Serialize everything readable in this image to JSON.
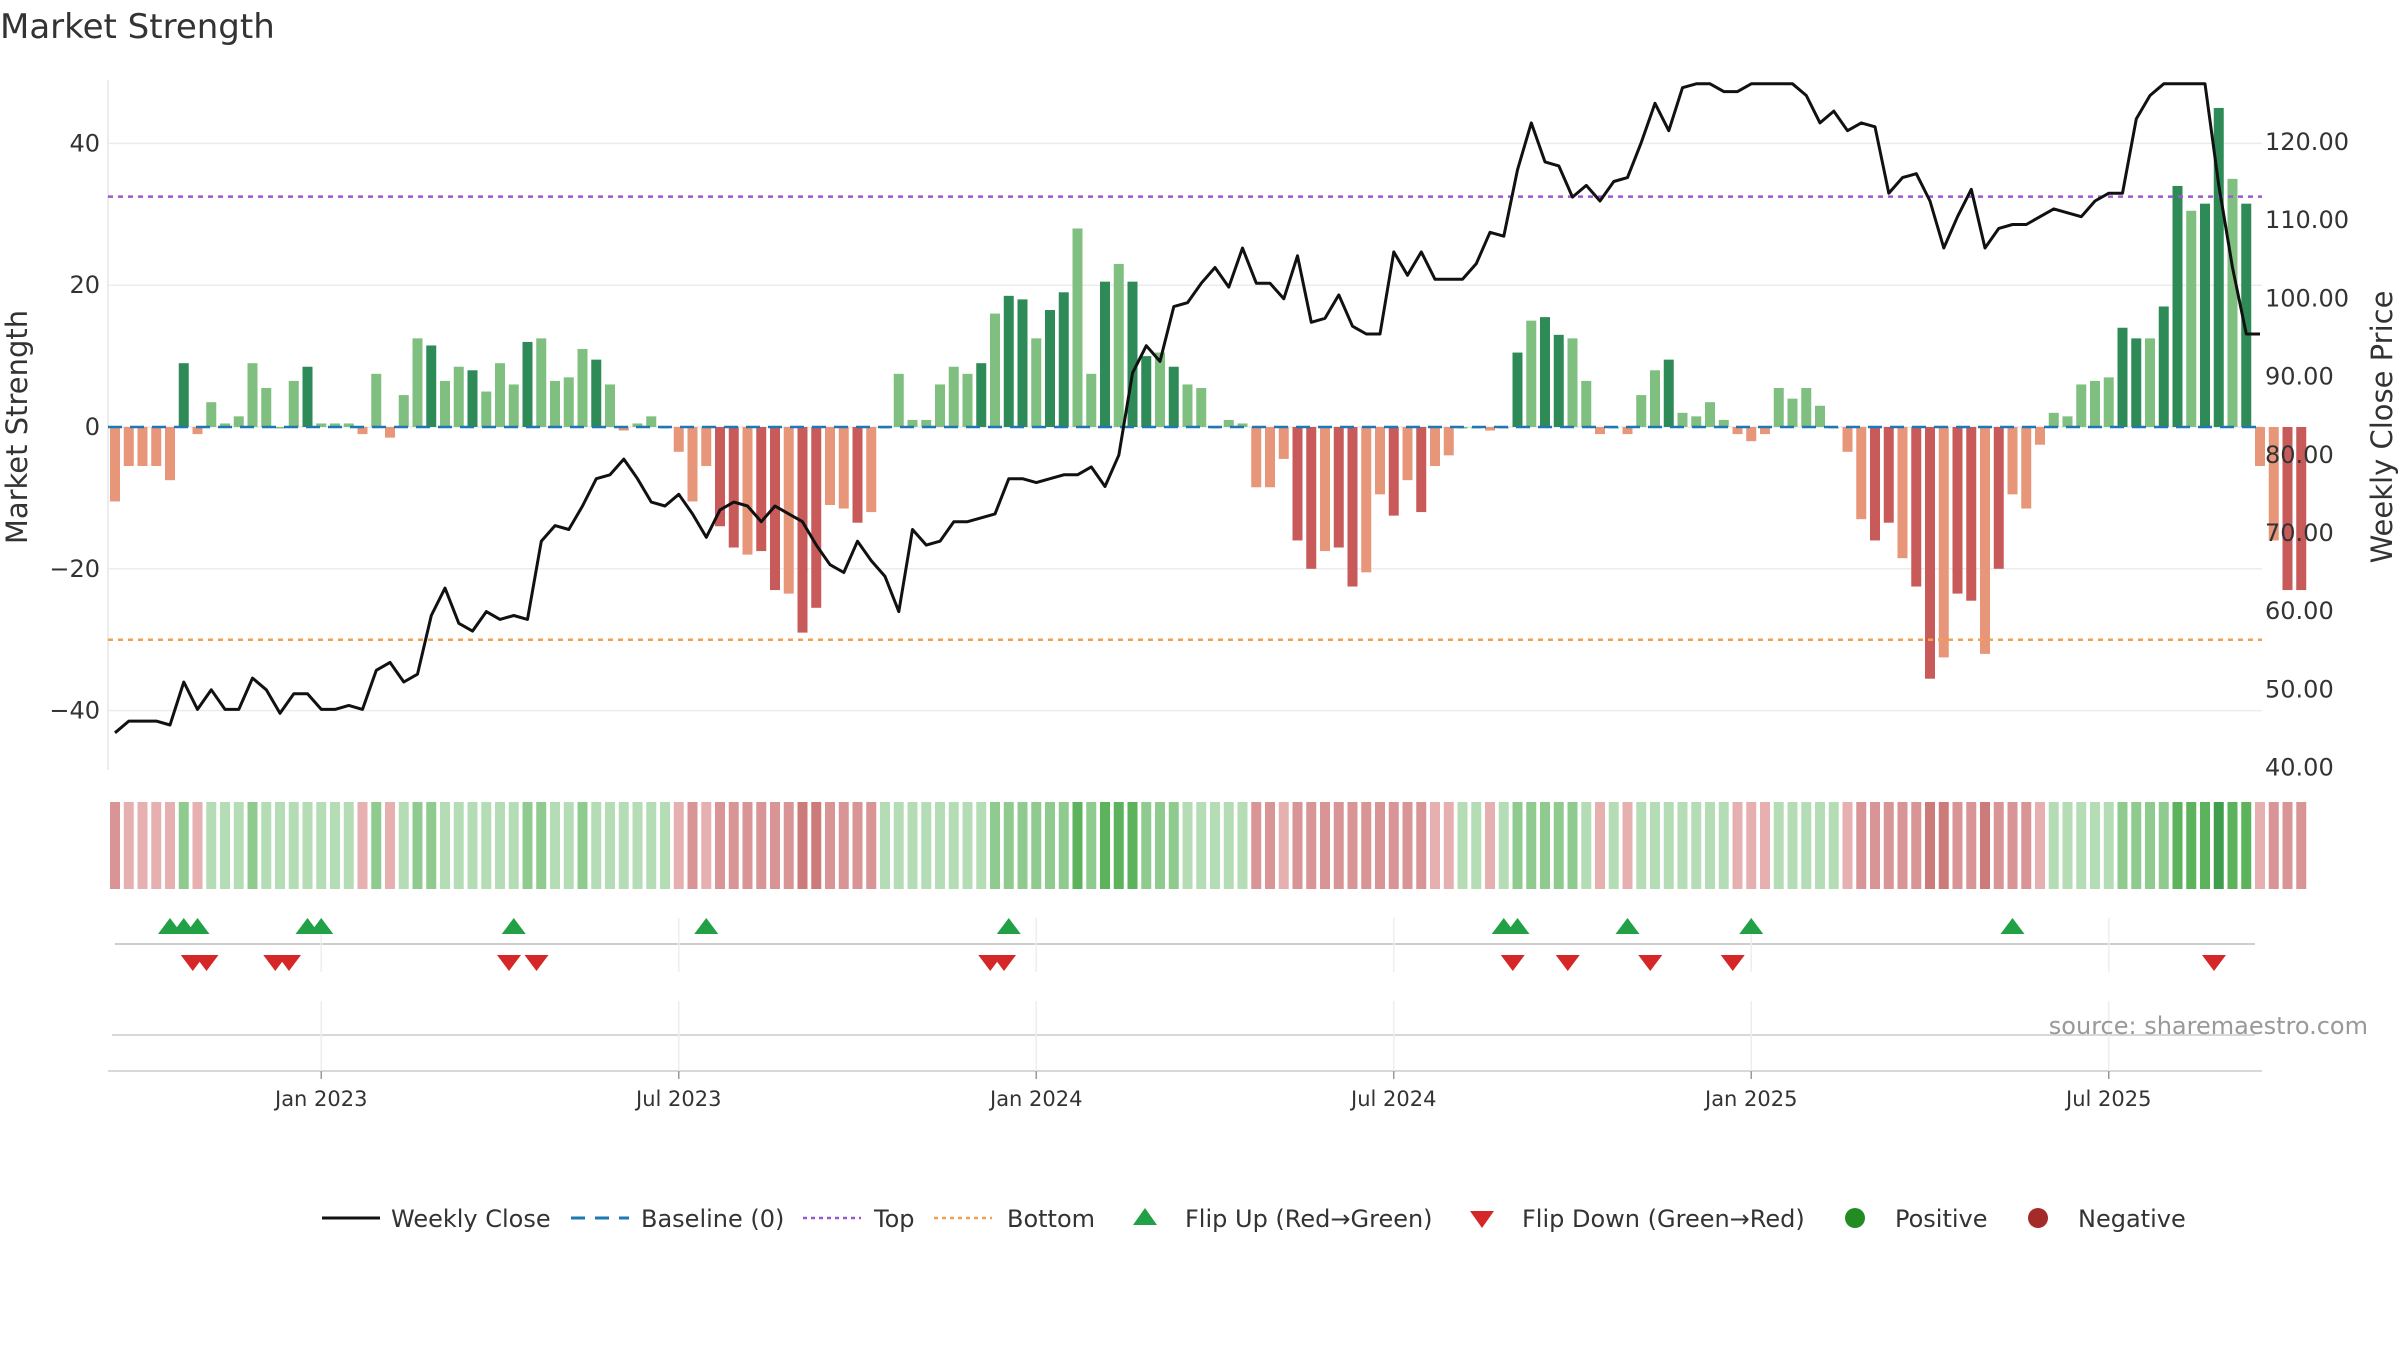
{
  "title": "Market Strength",
  "source_note": "source: sharemaestro.com",
  "colors": {
    "strong_green": "#2e8b57",
    "light_green": "#7fbf7f",
    "strong_red": "#c85a5a",
    "light_red": "#e8967a",
    "top_line": "#9b59d0",
    "bottom_line": "#f0a050",
    "baseline": "#1f77b4",
    "close_line": "#111111",
    "flip_up": "#22a046",
    "flip_down": "#d62728"
  },
  "chart_data": {
    "type": "bar",
    "title": "Market Strength",
    "left_axis": {
      "label": "Market Strength",
      "ticks": [
        "40",
        "20",
        "0",
        "−20",
        "−40"
      ],
      "range": [
        -48,
        48
      ]
    },
    "right_axis": {
      "label": "Weekly Close Price",
      "ticks": [
        "120.00",
        "110.00",
        "100.00",
        "90.00",
        "80.00",
        "70.00",
        "60.00",
        "50.00",
        "40.00"
      ],
      "range": [
        40,
        127
      ]
    },
    "x_ticks": [
      "Jan 2023",
      "Jul 2023",
      "Jan 2024",
      "Jul 2024",
      "Jan 2025",
      "Jul 2025"
    ],
    "x_tick_weeks": [
      15,
      41,
      67,
      93,
      119,
      145
    ],
    "top_level": 32.5,
    "bottom_level": -30,
    "baseline": 0,
    "strength": [
      -10.5,
      -5.5,
      -5.5,
      -5.5,
      -7.5,
      9,
      -1,
      3.5,
      0.5,
      1.5,
      9,
      5.5,
      0,
      6.5,
      8.5,
      0.5,
      0.5,
      0.5,
      -1,
      7.5,
      -1.5,
      4.5,
      12.5,
      11.5,
      6.5,
      8.5,
      8,
      5,
      9,
      6,
      12,
      12.5,
      6.5,
      7,
      11,
      9.5,
      6,
      -0.5,
      0.5,
      1.5,
      0,
      -3.5,
      -10.5,
      -5.5,
      -14,
      -17,
      -18,
      -17.5,
      -23,
      -23.5,
      -29,
      -25.5,
      -11,
      -11.5,
      -13.5,
      -12,
      0,
      7.5,
      1,
      1,
      6,
      8.5,
      7.5,
      9,
      16,
      18.5,
      18,
      12.5,
      16.5,
      19,
      28,
      7.5,
      20.5,
      23,
      20.5,
      10,
      10.5,
      8.5,
      6,
      5.5,
      0,
      1,
      0.5,
      -8.5,
      -8.5,
      -4.5,
      -16,
      -20,
      -17.5,
      -17,
      -22.5,
      -20.5,
      -9.5,
      -12.5,
      -7.5,
      -12,
      -5.5,
      -4,
      0,
      0,
      -0.5,
      0,
      10.5,
      15,
      15.5,
      13,
      12.5,
      6.5,
      -1,
      0,
      -1,
      4.5,
      8,
      9.5,
      2,
      1.5,
      3.5,
      1,
      -1,
      -2,
      -1,
      5.5,
      4,
      5.5,
      3,
      0,
      -3.5,
      -13,
      -16,
      -13.5,
      -18.5,
      -22.5,
      -35.5,
      -32.5,
      -23.5,
      -24.5,
      -32,
      -20,
      -9.5,
      -11.5,
      -2.5,
      2,
      1.5,
      6,
      6.5,
      7,
      14,
      12.5,
      12.5,
      17,
      34,
      30.5,
      31.5,
      45,
      35,
      31.5,
      -5.5,
      -16,
      -23,
      -23
    ],
    "weekly_close": [
      44.5,
      46,
      46,
      46,
      45.5,
      51,
      47.5,
      50,
      47.5,
      47.5,
      51.5,
      50,
      47,
      49.5,
      49.5,
      47.5,
      47.5,
      48,
      47.5,
      52.5,
      53.5,
      51,
      52,
      59.5,
      63,
      58.5,
      57.5,
      60,
      59,
      59.5,
      59,
      69,
      71,
      70.5,
      73.5,
      77,
      77.5,
      79.5,
      77,
      74,
      73.5,
      75,
      72.5,
      69.5,
      73,
      74,
      73.5,
      71.5,
      73.5,
      72.5,
      71.5,
      68.5,
      66,
      65,
      69,
      66.5,
      64.5,
      60,
      70.5,
      68.5,
      69,
      71.5,
      71.5,
      72,
      72.5,
      77,
      77,
      76.5,
      77,
      77.5,
      77.5,
      78.5,
      76,
      80,
      90.5,
      94,
      92,
      99,
      99.5,
      102,
      104,
      101.5,
      106.5,
      102,
      102,
      100,
      105.5,
      97,
      97.5,
      100.5,
      96.5,
      95.5,
      95.5,
      106,
      103,
      106,
      102.5,
      102.5,
      102.5,
      104.5,
      108.5,
      108,
      116.5,
      122.5,
      117.5,
      117,
      113,
      114.5,
      112.5,
      115,
      115.5,
      120,
      125,
      121.5,
      127,
      129.5,
      131.5,
      126.5,
      126.5,
      130,
      130,
      129.5,
      130,
      126,
      122.5,
      124,
      121.5,
      122.5,
      122,
      113.5,
      115.5,
      116,
      112.5,
      106.5,
      110.5,
      114,
      106.5,
      109,
      109.5,
      109.5,
      110.5,
      111.5,
      111,
      110.5,
      112.5,
      113.5,
      113.5,
      123,
      126,
      135,
      135.5,
      134,
      135.5,
      114.5,
      104,
      95.5,
      95.5
    ],
    "ribbon_levels": [
      -2,
      -1,
      -1,
      -1,
      -1,
      2,
      -1,
      1,
      1,
      1,
      2,
      1,
      1,
      1,
      1,
      1,
      1,
      1,
      -1,
      2,
      -1,
      1,
      2,
      2,
      1,
      1,
      1,
      1,
      1,
      1,
      2,
      2,
      1,
      1,
      2,
      1,
      1,
      1,
      1,
      1,
      1,
      -1,
      -2,
      -1,
      -2,
      -2,
      -2,
      -2,
      -2,
      -2,
      -3,
      -3,
      -2,
      -2,
      -2,
      -2,
      1,
      1,
      1,
      1,
      1,
      1,
      1,
      1,
      2,
      2,
      2,
      2,
      2,
      2,
      3,
      2,
      3,
      3,
      3,
      2,
      2,
      2,
      1,
      1,
      1,
      1,
      1,
      -2,
      -2,
      -1,
      -2,
      -2,
      -2,
      -2,
      -2,
      -2,
      -2,
      -2,
      -2,
      -2,
      -1,
      -1,
      1,
      1,
      -1,
      1,
      2,
      2,
      2,
      2,
      2,
      1,
      -1,
      1,
      -1,
      1,
      1,
      1,
      1,
      1,
      1,
      1,
      -1,
      -1,
      -1,
      1,
      1,
      1,
      1,
      1,
      -1,
      -2,
      -2,
      -2,
      -2,
      -2,
      -3,
      -3,
      -2,
      -2,
      -3,
      -2,
      -2,
      -2,
      -1,
      1,
      1,
      1,
      1,
      1,
      2,
      2,
      2,
      2,
      3,
      3,
      3,
      4,
      3,
      3,
      -1,
      -2,
      -2,
      -2
    ],
    "flip_up_weeks": [
      4,
      5,
      6,
      14,
      15,
      29,
      43,
      65,
      101,
      102,
      110,
      119,
      138
    ],
    "flip_down_weeks": [
      5,
      6,
      11,
      12,
      28,
      30,
      63,
      64,
      101,
      105,
      111,
      117,
      152
    ],
    "legend": [
      "Weekly Close",
      "Baseline (0)",
      "Top",
      "Bottom",
      "Flip Up (Red→Green)",
      "Flip Down (Green→Red)",
      "Positive",
      "Negative"
    ]
  }
}
